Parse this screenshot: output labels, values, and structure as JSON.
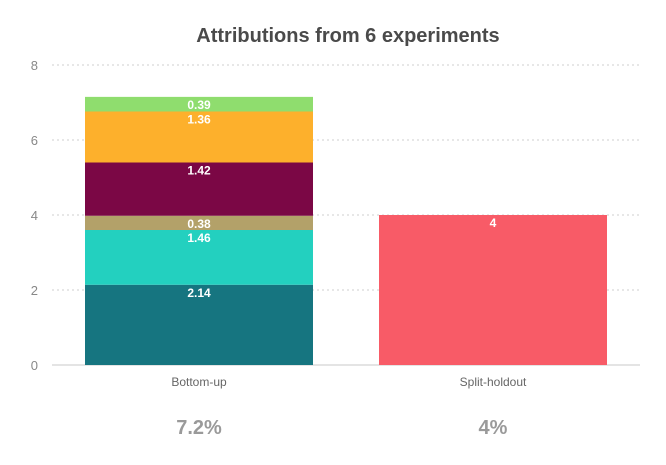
{
  "chart_data": {
    "type": "bar",
    "stacked": true,
    "title": "Attributions from 6 experiments",
    "xlabel": "",
    "ylabel": "",
    "ylim": [
      0,
      8
    ],
    "yticks": [
      0,
      2,
      4,
      6,
      8
    ],
    "grid": true,
    "categories": [
      "Bottom-up",
      "Split-holdout"
    ],
    "stacks": [
      {
        "category": "Bottom-up",
        "segments": [
          {
            "value": 2.14,
            "label": "2.14",
            "color": "#167580"
          },
          {
            "value": 1.46,
            "label": "1.46",
            "color": "#23d0bf"
          },
          {
            "value": 0.38,
            "label": "0.38",
            "color": "#b3a169"
          },
          {
            "value": 1.42,
            "label": "1.42",
            "color": "#7b0745"
          },
          {
            "value": 1.36,
            "label": "1.36",
            "color": "#fdb02c"
          },
          {
            "value": 0.39,
            "label": "0.39",
            "color": "#8fdd6e"
          }
        ],
        "total_label": "7.2%"
      },
      {
        "category": "Split-holdout",
        "segments": [
          {
            "value": 4,
            "label": "4",
            "color": "#f85b67"
          }
        ],
        "total_label": "4%"
      }
    ]
  }
}
